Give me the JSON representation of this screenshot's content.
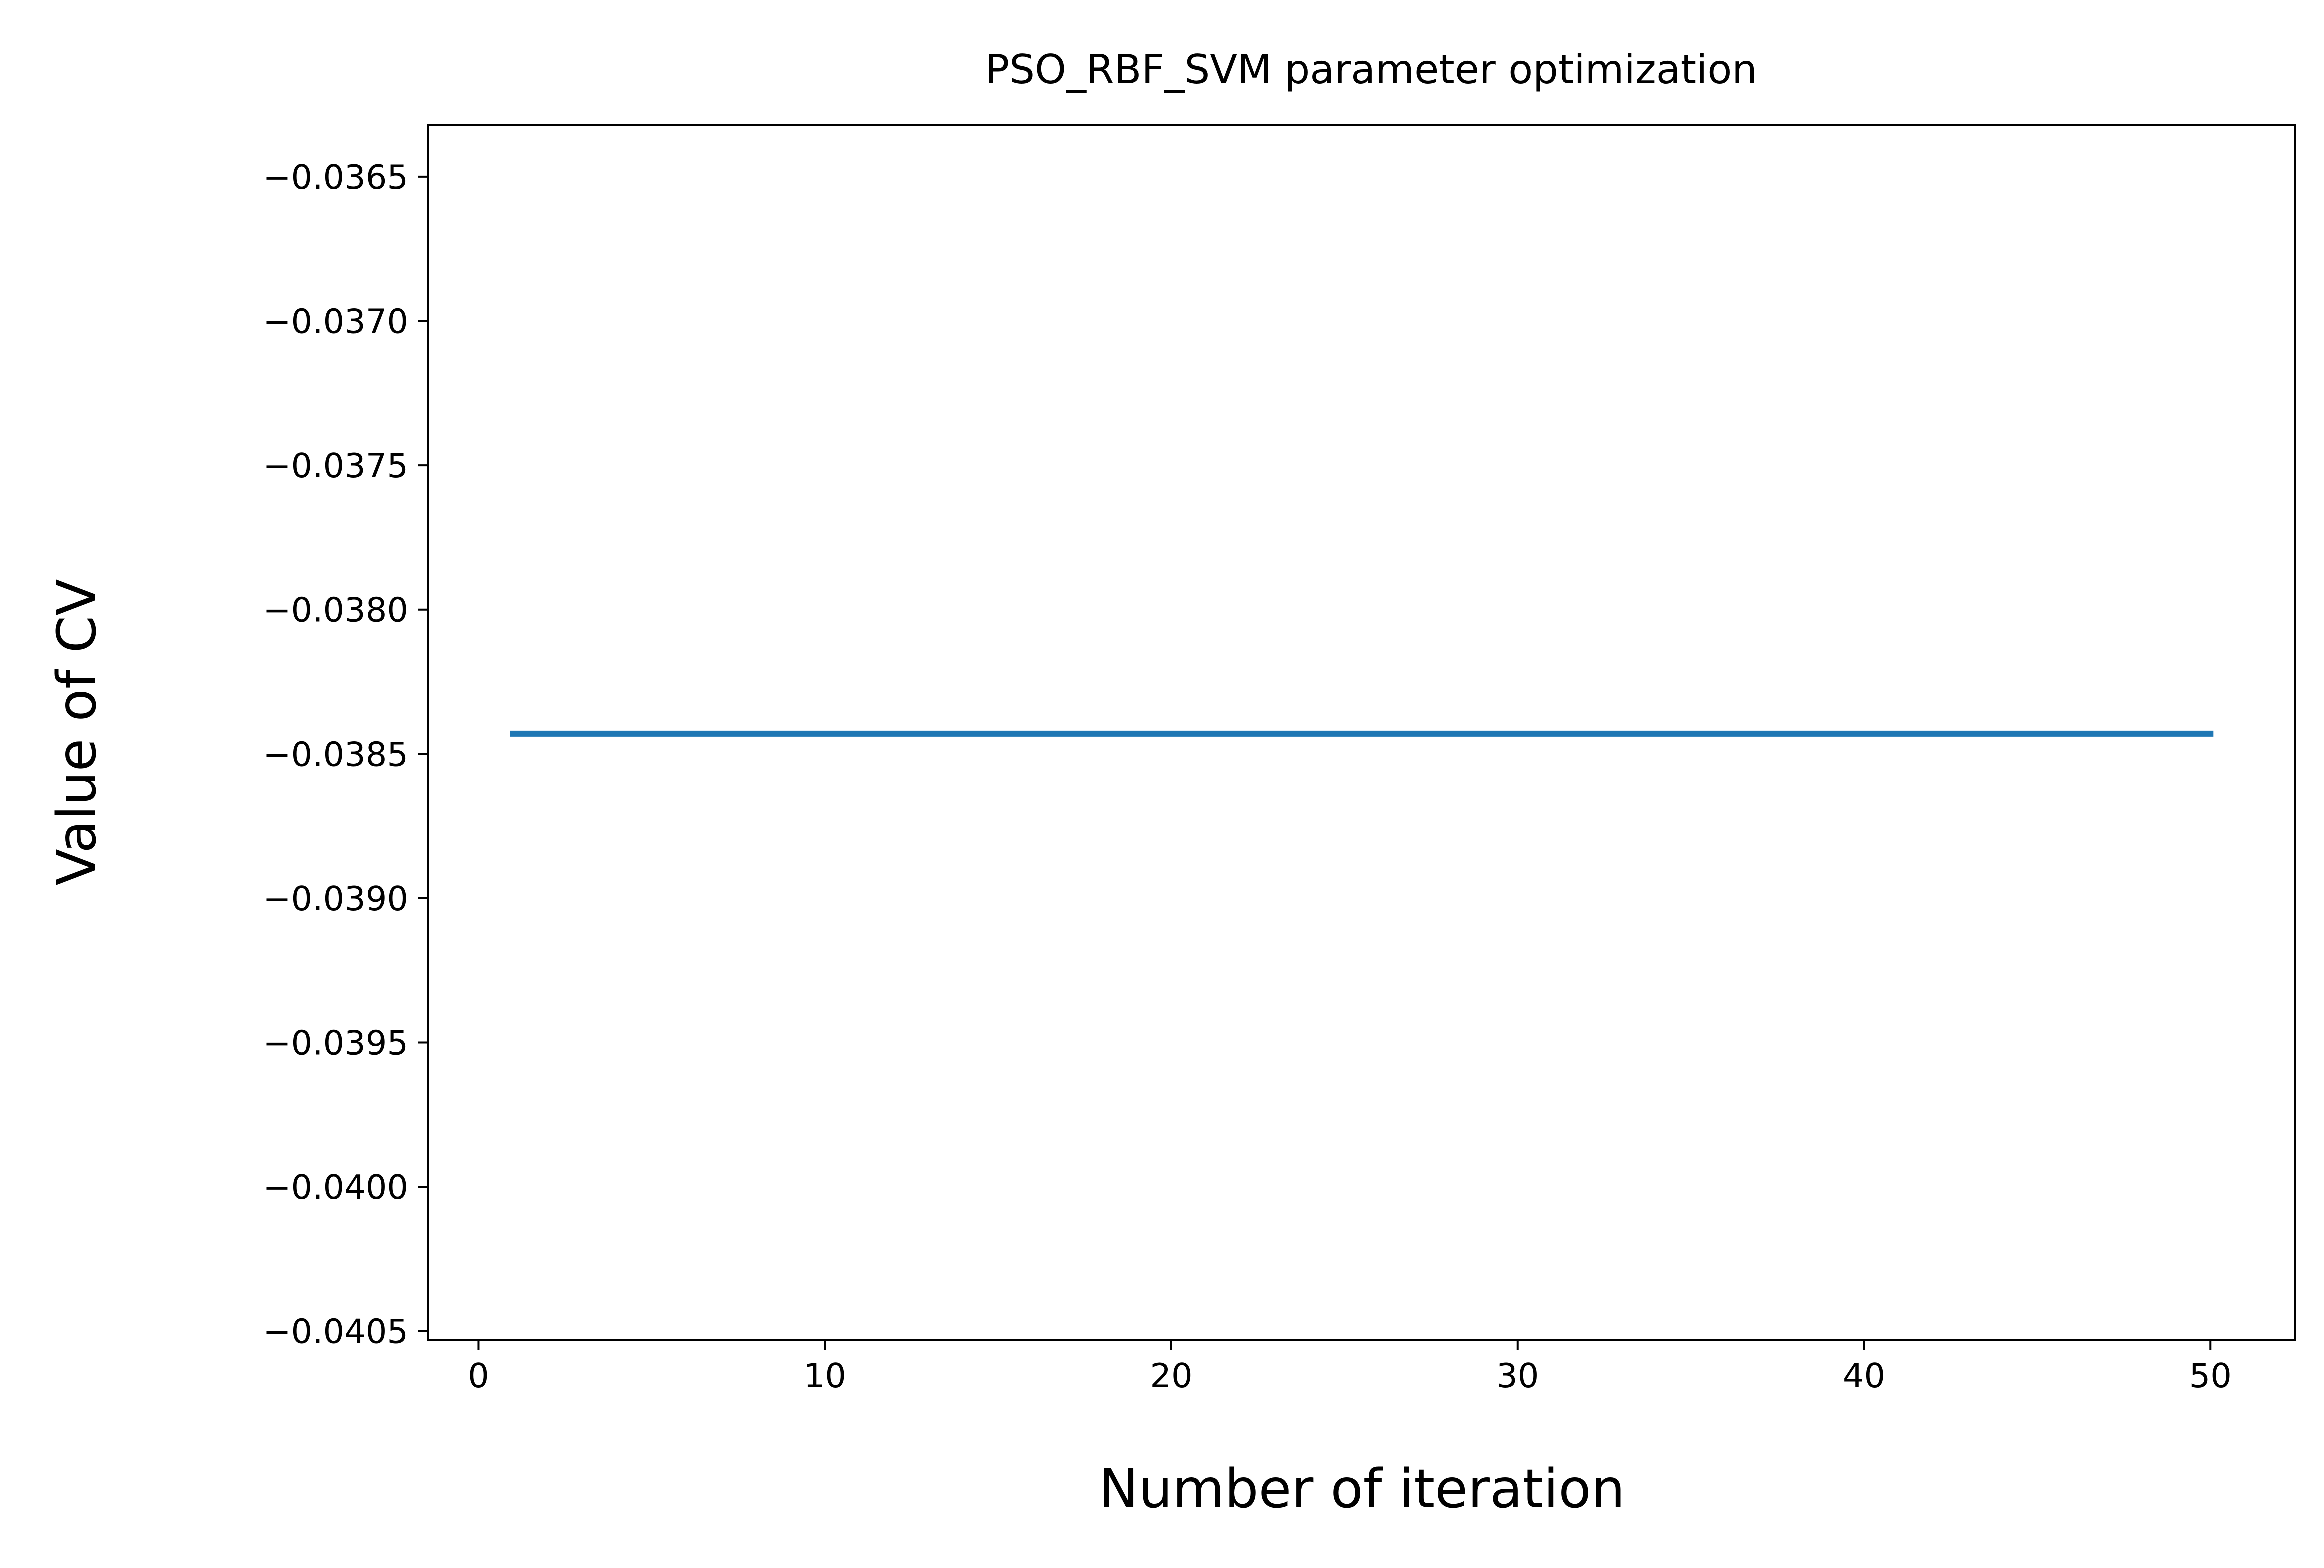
{
  "chart_data": {
    "type": "line",
    "title": "PSO_RBF_SVM parameter optimization",
    "xlabel": "Number of iteration",
    "ylabel": "Value of CV",
    "xlim": [
      -1.45,
      52.45
    ],
    "ylim": [
      -0.04053,
      -0.03632
    ],
    "xticks": [
      0,
      10,
      20,
      30,
      40,
      50
    ],
    "yticks": [
      -0.0365,
      -0.037,
      -0.0375,
      -0.038,
      -0.0385,
      -0.039,
      -0.0395,
      -0.04,
      -0.0405
    ],
    "xtick_labels": [
      "0",
      "10",
      "20",
      "30",
      "40",
      "50"
    ],
    "ytick_labels": [
      "−0.0365",
      "−0.0370",
      "−0.0375",
      "−0.0380",
      "−0.0385",
      "−0.0390",
      "−0.0395",
      "−0.0400",
      "−0.0405"
    ],
    "grid": false,
    "series": [
      {
        "color": "#1f77b4",
        "x": [
          1,
          50
        ],
        "y": [
          -0.03843,
          -0.03843
        ]
      }
    ]
  }
}
